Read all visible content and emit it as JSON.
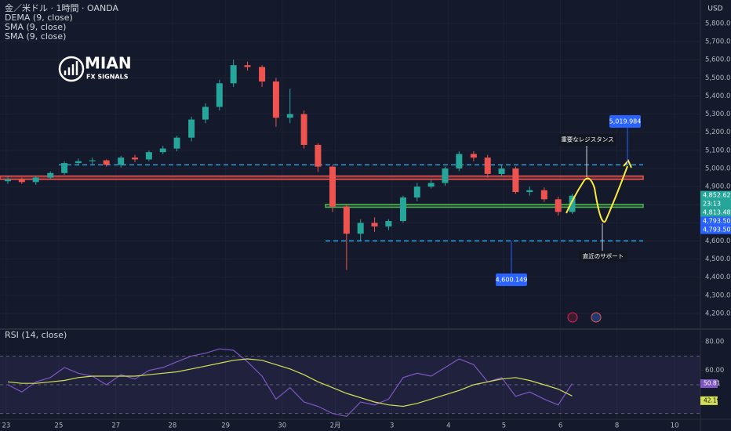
{
  "chart_data": [
    {
      "type": "candlestick",
      "title": "金／米ドル · 1時間 · OANDA",
      "indicators": [
        "DEMA (9, close)",
        "SMA (9, close)",
        "SMA (9, close)"
      ],
      "currency": "USD",
      "brand": "MIAN",
      "brand_sub": "FX SIGNALS",
      "up_color": "#26a69a",
      "down_color": "#ef5350",
      "x": [
        0.09,
        0.34,
        0.59,
        0.85,
        1.1,
        1.35,
        1.6,
        1.85,
        2.11,
        2.36,
        2.61,
        2.86,
        3.11,
        3.37,
        3.62,
        3.87,
        4.12,
        4.37,
        4.63,
        4.88,
        5.13,
        5.38,
        5.63,
        5.89,
        6.14,
        6.39,
        6.64,
        6.89,
        7.15,
        7.4,
        7.65,
        7.9,
        8.15,
        8.41,
        8.66,
        8.91,
        9.16,
        9.41,
        9.67,
        9.92,
        10.17
      ],
      "open": [
        4930,
        4940,
        4925,
        4950,
        4975,
        5030,
        5040,
        5045,
        5020,
        5060,
        5050,
        5090,
        5110,
        5170,
        5270,
        5340,
        5470,
        5570,
        5560,
        5480,
        5280,
        5300,
        5130,
        5010,
        4790,
        4640,
        4700,
        4680,
        4710,
        4840,
        4900,
        4920,
        5000,
        5080,
        5060,
        4970,
        5000,
        4870,
        4880,
        4830,
        4760
      ],
      "high": [
        4955,
        4950,
        4960,
        4985,
        5040,
        5055,
        5060,
        5050,
        5070,
        5075,
        5100,
        5125,
        5180,
        5285,
        5360,
        5490,
        5600,
        5590,
        5570,
        5500,
        5440,
        5320,
        5140,
        5020,
        4800,
        4720,
        4730,
        4720,
        4850,
        4920,
        4940,
        5010,
        5095,
        5095,
        5075,
        5020,
        5010,
        4900,
        4895,
        4845,
        4860
      ],
      "low": [
        4915,
        4915,
        4910,
        4940,
        4965,
        5015,
        5025,
        5010,
        5005,
        5035,
        5040,
        5080,
        5095,
        5150,
        5250,
        5320,
        5450,
        5540,
        5450,
        5230,
        5250,
        5110,
        4980,
        4760,
        4440,
        4600,
        4650,
        4660,
        4700,
        4820,
        4890,
        4905,
        4985,
        5040,
        4950,
        4955,
        4860,
        4850,
        4815,
        4740,
        4750
      ],
      "close": [
        4940,
        4925,
        4950,
        4975,
        5030,
        5040,
        5045,
        5020,
        5060,
        5050,
        5090,
        5110,
        5170,
        5270,
        5340,
        5470,
        5570,
        5560,
        5480,
        5280,
        5300,
        5130,
        5010,
        4790,
        4640,
        4700,
        4680,
        4710,
        4840,
        4900,
        4920,
        5000,
        5080,
        5060,
        4970,
        5000,
        4870,
        4880,
        4830,
        4760,
        4850
      ],
      "xlim": [
        -0.05,
        12.46
      ],
      "ylim": [
        4113.5,
        5929.7
      ],
      "xticks": [
        {
          "value": 0.06,
          "label": "23"
        },
        {
          "value": 1,
          "label": "25"
        },
        {
          "value": 2.02,
          "label": "27"
        },
        {
          "value": 3.03,
          "label": "28"
        },
        {
          "value": 3.98,
          "label": "29"
        },
        {
          "value": 4.99,
          "label": "30"
        },
        {
          "value": 5.94,
          "label": "2月"
        },
        {
          "value": 6.95,
          "label": "3"
        },
        {
          "value": 7.96,
          "label": "4"
        },
        {
          "value": 8.95,
          "label": "5"
        },
        {
          "value": 9.96,
          "label": "6"
        },
        {
          "value": 10.97,
          "label": "8"
        },
        {
          "value": 12.0,
          "label": "10"
        }
      ],
      "yticks": [
        {
          "value": 4200,
          "label": "4,200.000"
        },
        {
          "value": 4300,
          "label": "4,300.000"
        },
        {
          "value": 4400,
          "label": "4,400.000"
        },
        {
          "value": 4500,
          "label": "4,500.000"
        },
        {
          "value": 4600,
          "label": "4,600.000"
        },
        {
          "value": 4700,
          "label": "4,700.000"
        },
        {
          "value": 4800,
          "label": "4,800.000"
        },
        {
          "value": 4900,
          "label": "4,900.000"
        },
        {
          "value": 5000,
          "label": "5,000.000"
        },
        {
          "value": 5100,
          "label": "5,100.000"
        },
        {
          "value": 5200,
          "label": "5,200.000"
        },
        {
          "value": 5300,
          "label": "5,300.000"
        },
        {
          "value": 5400,
          "label": "5,400.000"
        },
        {
          "value": 5500,
          "label": "5,500.000"
        },
        {
          "value": 5600,
          "label": "5,600.000"
        },
        {
          "value": 5700,
          "label": "5,700.000"
        },
        {
          "value": 5800,
          "label": "5,800.000"
        }
      ],
      "grid": true,
      "levels": [
        {
          "value": 5019.984,
          "label": "5,019.984",
          "color": "#29b6f6"
        },
        {
          "value": 4600.149,
          "label": "4,600.149",
          "color": "#29b6f6"
        }
      ],
      "zones": [
        {
          "low": 4940,
          "high": 4958,
          "color": "#ef5350"
        },
        {
          "low": 4786,
          "high": 4802,
          "color": "#4caf50"
        }
      ],
      "price_labels": [
        {
          "value": 4852.62,
          "label": "4,852.620",
          "color": "#26a69a"
        },
        {
          "value": 4813.484,
          "label": "4,813.484",
          "color": "#26a69a"
        },
        {
          "value": 4793.504,
          "label": "4,793.504",
          "color": "#2962ff"
        },
        {
          "value": 4793.504,
          "label": "4,793.504",
          "color": "#2962ff"
        }
      ],
      "countdown": "23:13",
      "annotations": [
        "重要なレジスタンス",
        "直近のサポート"
      ]
    },
    {
      "type": "line",
      "title": "RSI (14, close)",
      "ylim": [
        26,
        86
      ],
      "yticks": [
        {
          "value": 80,
          "label": "80.00"
        },
        {
          "value": 60,
          "label": "60.00"
        }
      ],
      "bands": [
        30,
        70
      ],
      "midline": 50,
      "series": [
        {
          "color": "#7e57c2",
          "values": [
            50,
            45,
            52,
            55,
            62,
            58,
            56,
            50,
            57,
            54,
            60,
            62,
            66,
            70,
            72,
            75,
            74,
            66,
            56,
            40,
            48,
            38,
            35,
            30,
            28,
            38,
            36,
            40,
            55,
            58,
            56,
            62,
            68,
            64,
            52,
            55,
            42,
            45,
            40,
            36,
            50.81
          ]
        },
        {
          "color": "#d4e157",
          "values": [
            52,
            51,
            51,
            52,
            53,
            55,
            56,
            56,
            56,
            56,
            57,
            58,
            59,
            61,
            63,
            65,
            67,
            68,
            67,
            64,
            61,
            57,
            52,
            48,
            44,
            41,
            38,
            36,
            35,
            37,
            40,
            43,
            46,
            50,
            52,
            54,
            55,
            53,
            50,
            47,
            42.19
          ]
        }
      ]
    }
  ]
}
